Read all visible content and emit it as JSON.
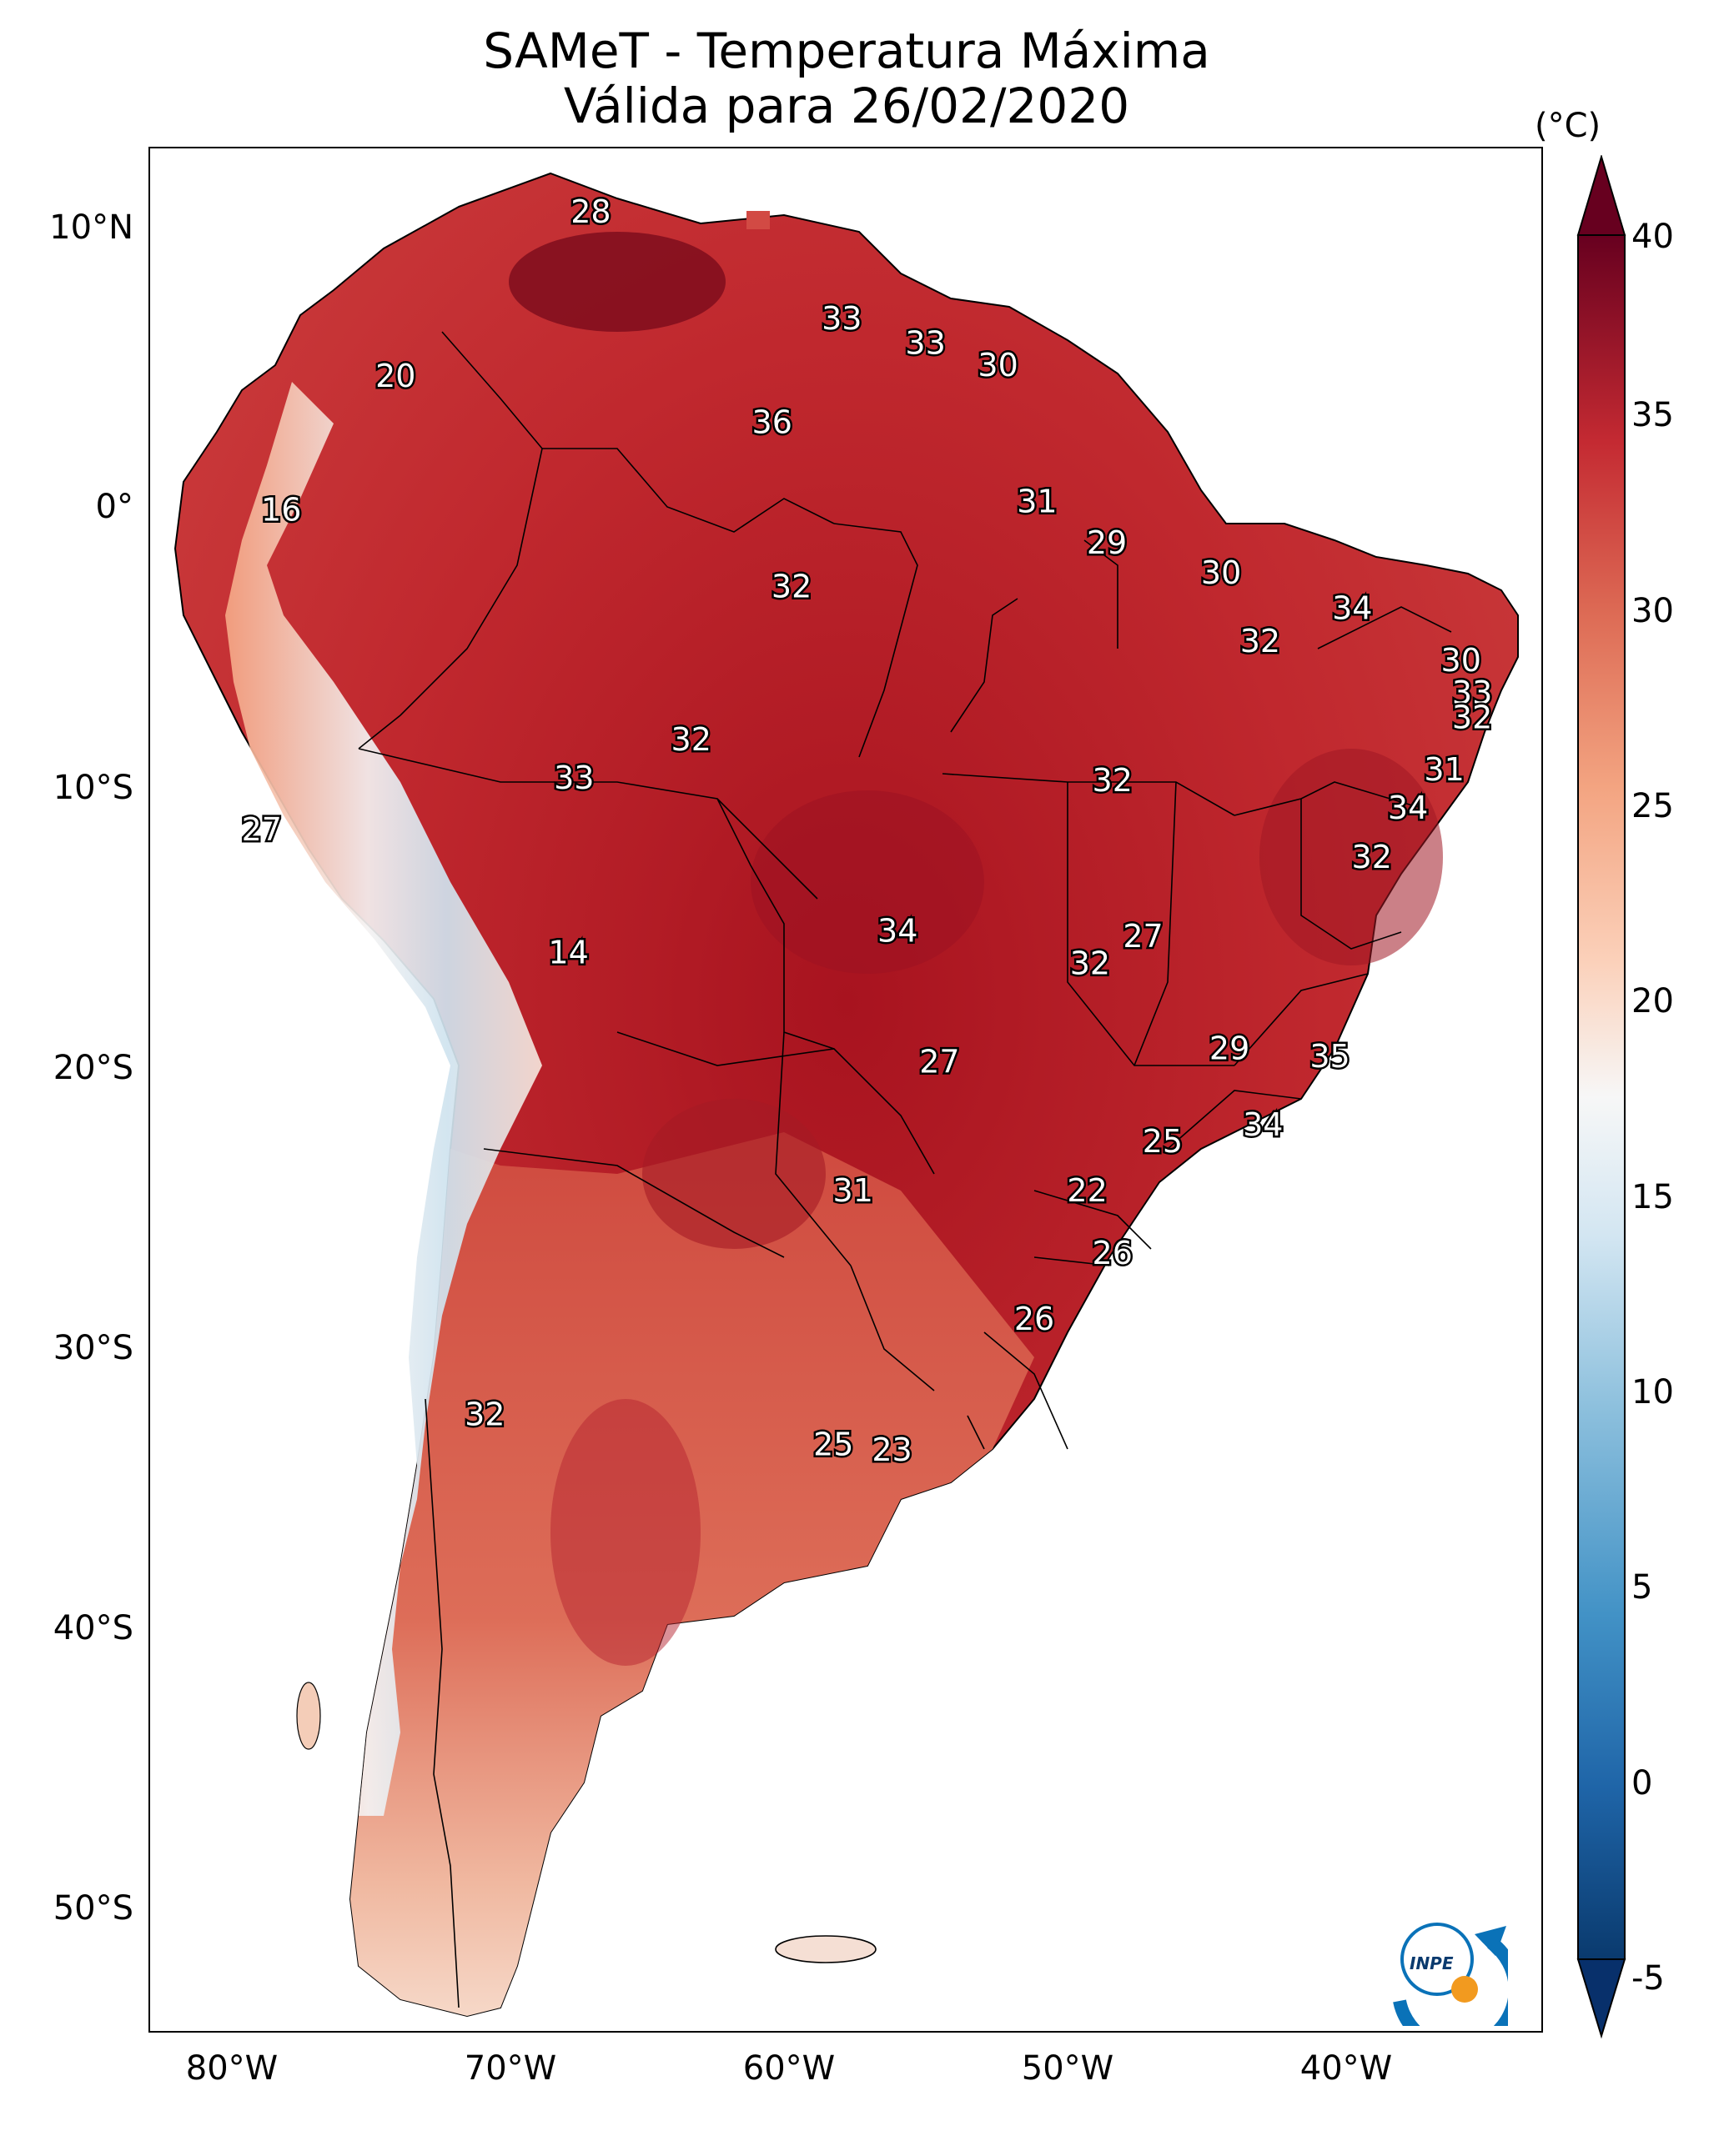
{
  "title": {
    "line1": "SAMeT - Temperatura Máxima",
    "line2": "Válida para 26/02/2020"
  },
  "axes": {
    "lat_labels": [
      "10°N",
      "0°",
      "10°S",
      "20°S",
      "30°S",
      "40°S",
      "50°S"
    ],
    "lat_values": [
      10,
      0,
      -10,
      -20,
      -30,
      -40,
      -50
    ],
    "lon_labels": [
      "80°W",
      "70°W",
      "60°W",
      "50°W",
      "40°W"
    ],
    "lon_values": [
      -80,
      -70,
      -60,
      -50,
      -40
    ],
    "lon_range": [
      -83,
      -33
    ],
    "lat_range": [
      -56,
      13
    ]
  },
  "colorbar": {
    "unit": "(°C)",
    "ticks": [
      "40",
      "35",
      "30",
      "25",
      "20",
      "15",
      "10",
      "5",
      "0",
      "-5"
    ],
    "tick_values": [
      40,
      35,
      30,
      25,
      20,
      15,
      10,
      5,
      0,
      -5
    ],
    "range": [
      -5,
      40
    ],
    "colors": [
      "#0a3a6e",
      "#1f65a8",
      "#4292c6",
      "#8dc0dd",
      "#d3e6f2",
      "#f7f7f7",
      "#fbd0b9",
      "#f3a481",
      "#dd6b55",
      "#c42a32",
      "#8a0b1e",
      "#67001f"
    ]
  },
  "annotations": [
    {
      "text": "28",
      "lon": -67.2,
      "lat": 10.6
    },
    {
      "text": "20",
      "lon": -74.2,
      "lat": 4.6
    },
    {
      "text": "16",
      "lon": -78.3,
      "lat": -0.3
    },
    {
      "text": "33",
      "lon": -58.2,
      "lat": 6.7
    },
    {
      "text": "33",
      "lon": -55.2,
      "lat": 5.8
    },
    {
      "text": "30",
      "lon": -52.6,
      "lat": 5.0
    },
    {
      "text": "36",
      "lon": -60.7,
      "lat": 2.9
    },
    {
      "text": "31",
      "lon": -51.2,
      "lat": 0.0
    },
    {
      "text": "29",
      "lon": -48.7,
      "lat": -1.5
    },
    {
      "text": "30",
      "lon": -44.6,
      "lat": -2.6
    },
    {
      "text": "32",
      "lon": -60.0,
      "lat": -3.1
    },
    {
      "text": "34",
      "lon": -39.9,
      "lat": -3.9
    },
    {
      "text": "32",
      "lon": -43.2,
      "lat": -5.1
    },
    {
      "text": "30",
      "lon": -36.0,
      "lat": -5.8
    },
    {
      "text": "33",
      "lon": -35.6,
      "lat": -7.0
    },
    {
      "text": "32",
      "lon": -35.6,
      "lat": -7.9
    },
    {
      "text": "32",
      "lon": -63.6,
      "lat": -8.7
    },
    {
      "text": "31",
      "lon": -36.6,
      "lat": -9.8
    },
    {
      "text": "33",
      "lon": -67.8,
      "lat": -10.1
    },
    {
      "text": "32",
      "lon": -48.5,
      "lat": -10.2
    },
    {
      "text": "34",
      "lon": -37.9,
      "lat": -11.2
    },
    {
      "text": "27",
      "lon": -79.0,
      "lat": -12.0
    },
    {
      "text": "32",
      "lon": -39.2,
      "lat": -13.0
    },
    {
      "text": "34",
      "lon": -56.2,
      "lat": -15.7
    },
    {
      "text": "27",
      "lon": -47.4,
      "lat": -15.9
    },
    {
      "text": "14",
      "lon": -68.0,
      "lat": -16.5
    },
    {
      "text": "32",
      "lon": -49.3,
      "lat": -16.9
    },
    {
      "text": "29",
      "lon": -44.3,
      "lat": -20.0
    },
    {
      "text": "35",
      "lon": -40.7,
      "lat": -20.3
    },
    {
      "text": "27",
      "lon": -54.7,
      "lat": -20.5
    },
    {
      "text": "34",
      "lon": -43.1,
      "lat": -22.8
    },
    {
      "text": "25",
      "lon": -46.7,
      "lat": -23.4
    },
    {
      "text": "31",
      "lon": -57.8,
      "lat": -25.2
    },
    {
      "text": "22",
      "lon": -49.4,
      "lat": -25.2
    },
    {
      "text": "26",
      "lon": -48.5,
      "lat": -27.5
    },
    {
      "text": "26",
      "lon": -51.3,
      "lat": -29.9
    },
    {
      "text": "32",
      "lon": -71.0,
      "lat": -33.4
    },
    {
      "text": "25",
      "lon": -58.5,
      "lat": -34.5
    },
    {
      "text": "23",
      "lon": -56.4,
      "lat": -34.7
    }
  ],
  "logo": {
    "text": "INPE"
  }
}
